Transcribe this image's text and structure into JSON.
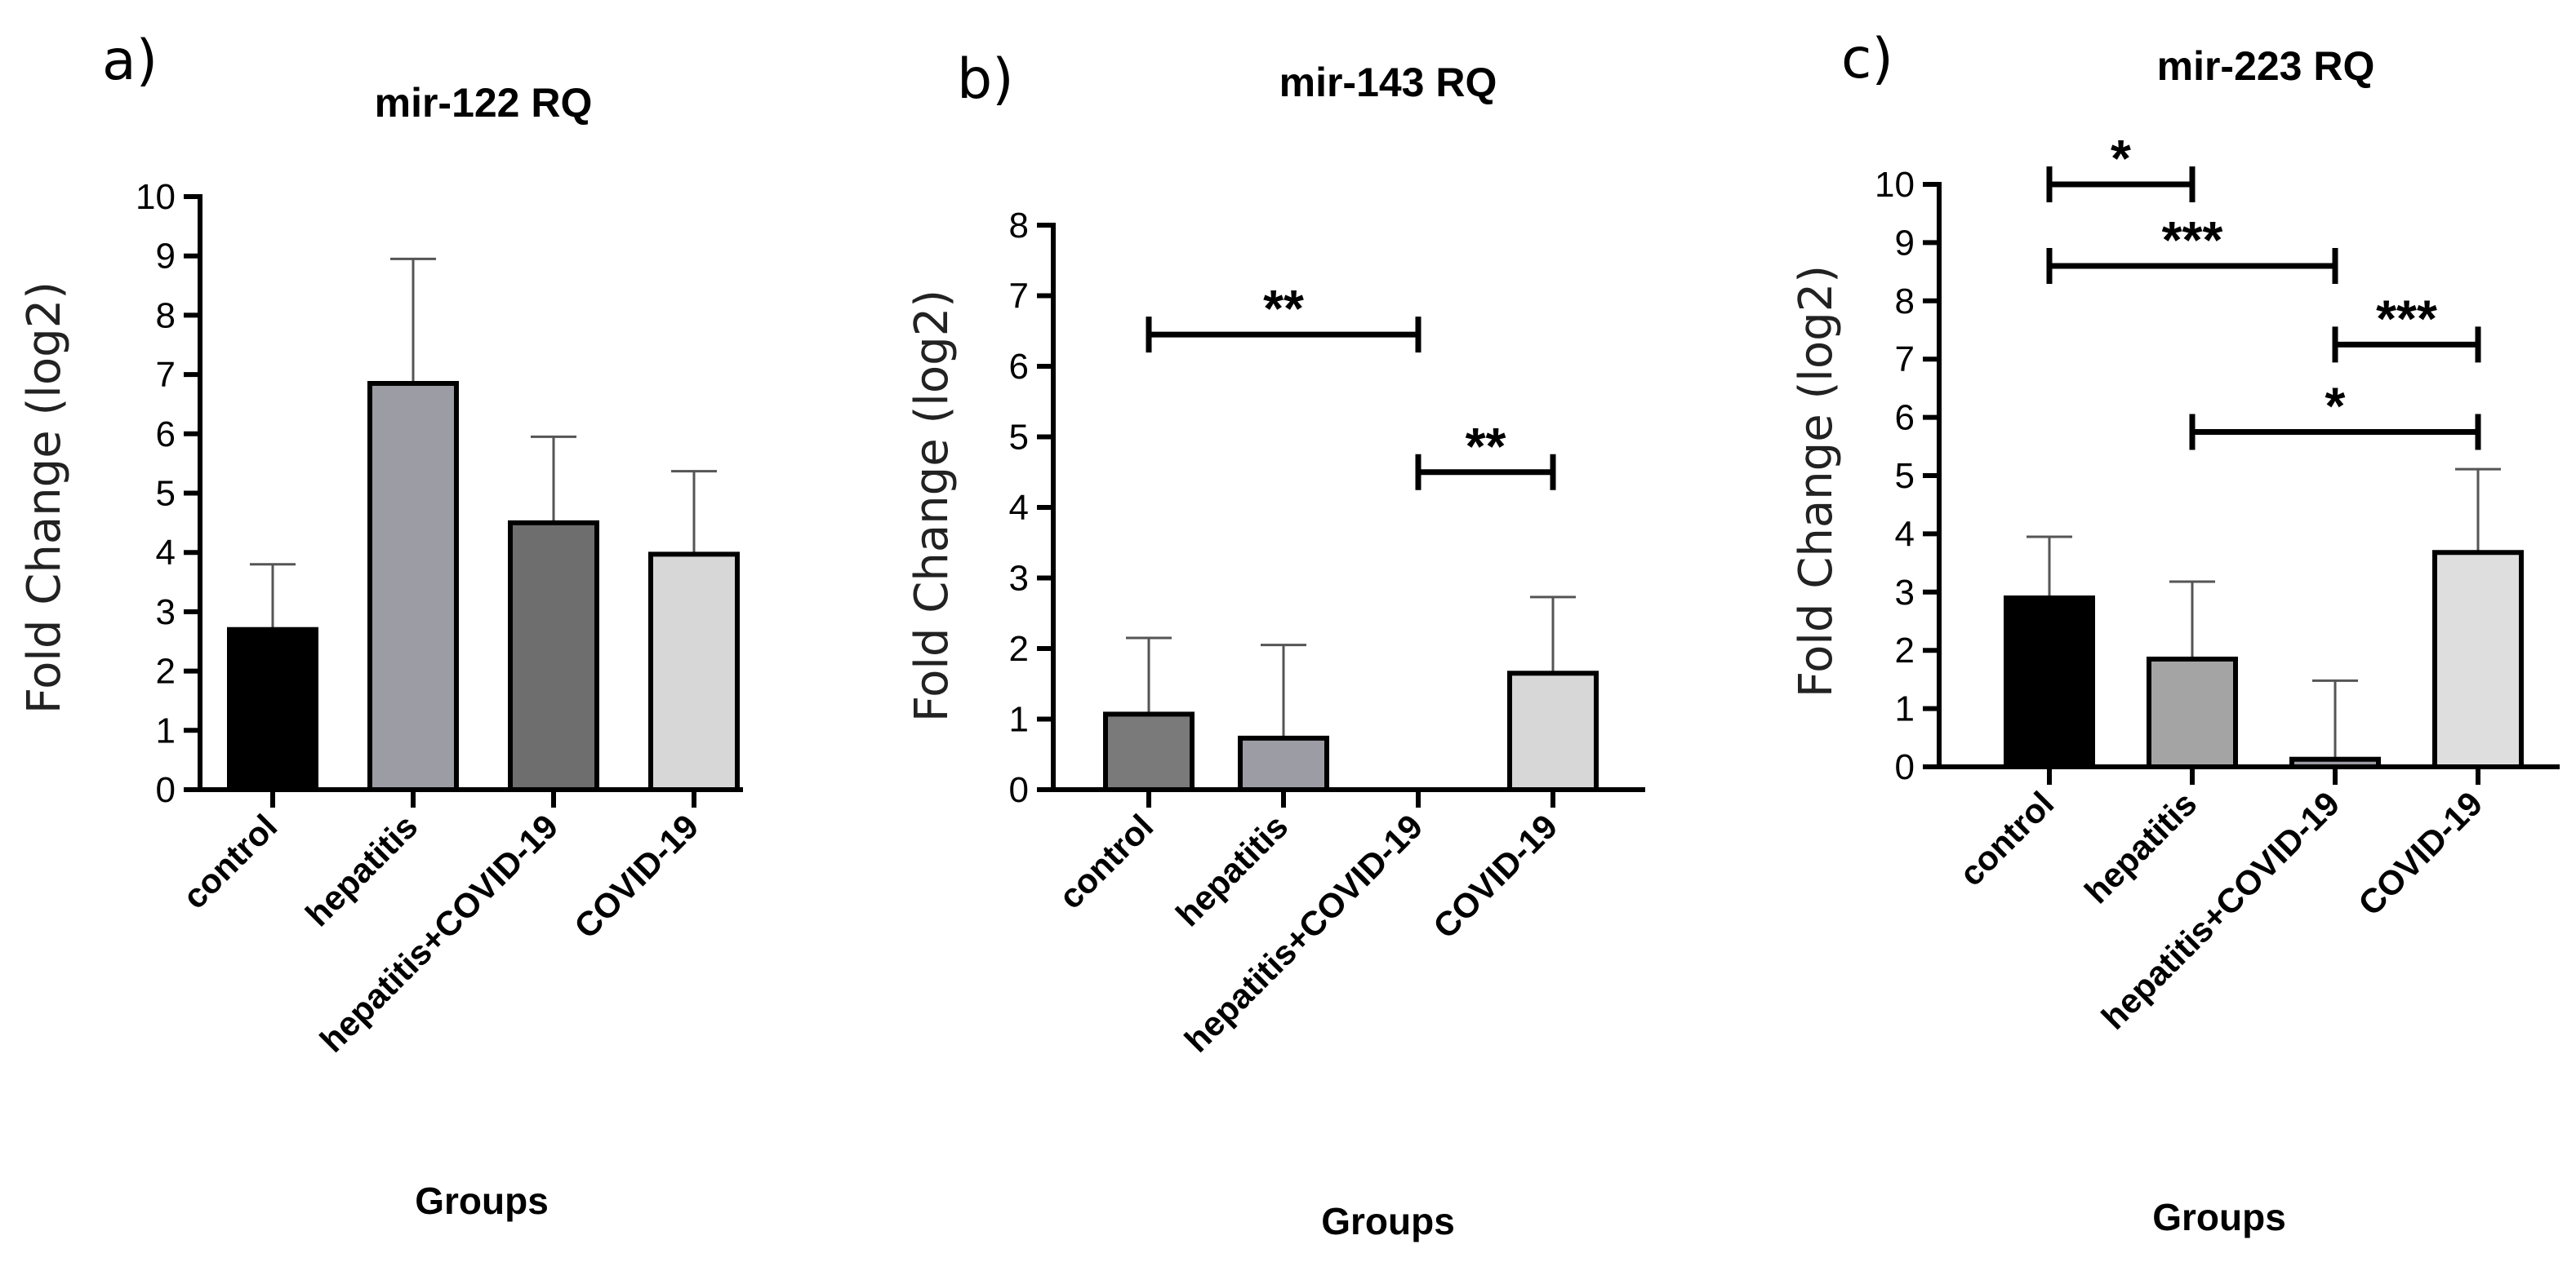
{
  "chart_data": [
    {
      "type": "bar",
      "panel": "a)",
      "title": "mir-122 RQ",
      "xlabel": "Groups",
      "ylabel": "Fold Change (log2)",
      "ylim": [
        0,
        10
      ],
      "yticks": [
        0,
        1,
        2,
        3,
        4,
        5,
        6,
        7,
        8,
        9,
        10
      ],
      "categories": [
        "control",
        "hepatitis",
        "hepatitis+COVID-19",
        "COVID-19"
      ],
      "values": [
        2.7,
        6.85,
        4.5,
        3.97
      ],
      "errors": [
        1.1,
        2.1,
        1.45,
        1.4
      ],
      "colors": [
        "#000000",
        "#9c9ca4",
        "#6e6e6e",
        "#d7d7d7"
      ],
      "significance": []
    },
    {
      "type": "bar",
      "panel": "b)",
      "title": "mir-143 RQ",
      "xlabel": "Groups",
      "ylabel": "Fold Change (log2)",
      "ylim": [
        0,
        8
      ],
      "yticks": [
        0,
        1,
        2,
        3,
        4,
        5,
        6,
        7,
        8
      ],
      "categories": [
        "control",
        "hepatitis",
        "hepatitis+COVID-19",
        "COVID-19"
      ],
      "values": [
        1.07,
        0.73,
        0,
        1.65
      ],
      "errors": [
        1.08,
        1.32,
        0,
        1.08
      ],
      "colors": [
        "#7a7a7a",
        "#9c9ca4",
        "#9c9ca4",
        "#d7d7d7"
      ],
      "significance": [
        {
          "from": 0,
          "to": 2,
          "y": 6.45,
          "label": "**"
        },
        {
          "from": 2,
          "to": 3,
          "y": 4.5,
          "label": "**"
        }
      ]
    },
    {
      "type": "bar",
      "panel": "c)",
      "title": "mir-223 RQ",
      "xlabel": "Groups",
      "ylabel": "Fold Change (log2)",
      "ylim": [
        0,
        10
      ],
      "yticks": [
        0,
        1,
        2,
        3,
        4,
        5,
        6,
        7,
        8,
        9,
        10
      ],
      "categories": [
        "control",
        "hepatitis",
        "hepatitis+COVID-19",
        "COVID-19"
      ],
      "values": [
        2.9,
        1.85,
        0.13,
        3.68
      ],
      "errors": [
        1.05,
        1.33,
        1.35,
        1.43
      ],
      "colors": [
        "#000000",
        "#a4a4a4",
        "#9c9ca4",
        "#dedede"
      ],
      "significance": [
        {
          "from": 0,
          "to": 1,
          "y": 10.0,
          "label": "*"
        },
        {
          "from": 0,
          "to": 2,
          "y": 8.6,
          "label": "***"
        },
        {
          "from": 2,
          "to": 3,
          "y": 7.25,
          "label": "***"
        },
        {
          "from": 1,
          "to": 3,
          "y": 5.75,
          "label": "*"
        }
      ]
    }
  ]
}
